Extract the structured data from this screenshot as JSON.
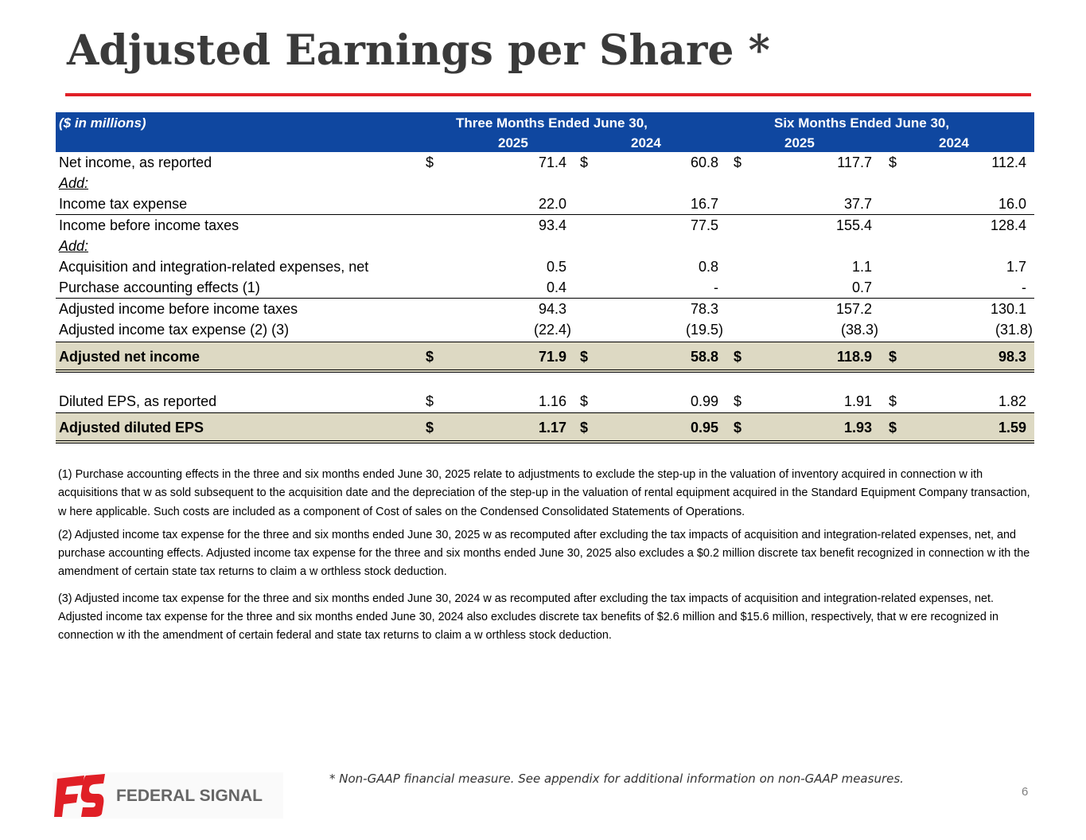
{
  "title": "Adjusted Earnings per Share *",
  "table": {
    "units": "($ in millions)",
    "group1": "Three Months Ended June 30,",
    "group2": "Six Months Ended June 30,",
    "years": [
      "2025",
      "2024",
      "2025",
      "2024"
    ],
    "rows": [
      {
        "label": "Net income, as reported",
        "cur": [
          "$",
          "$",
          "$",
          "$"
        ],
        "values": [
          "71.4",
          "60.8",
          "117.7",
          "112.4"
        ]
      },
      {
        "label": "Add:"
      },
      {
        "label": "Income tax expense",
        "values": [
          "22.0",
          "16.7",
          "37.7",
          "16.0"
        ]
      },
      {
        "label": "Income before income taxes",
        "values": [
          "93.4",
          "77.5",
          "155.4",
          "128.4"
        ]
      },
      {
        "label": "Add:"
      },
      {
        "label": "Acquisition and integration-related expenses, net",
        "values": [
          "0.5",
          "0.8",
          "1.1",
          "1.7"
        ]
      },
      {
        "label": "Purchase accounting effects (1)",
        "values": [
          "0.4",
          "-",
          "0.7",
          "-"
        ]
      },
      {
        "label": "Adjusted income before income taxes",
        "values": [
          "94.3",
          "78.3",
          "157.2",
          "130.1"
        ]
      },
      {
        "label": "Adjusted income tax expense (2) (3)",
        "values": [
          "(22.4)",
          "(19.5)",
          "(38.3)",
          "(31.8)"
        ]
      },
      {
        "label": "Adjusted net income",
        "cur": [
          "$",
          "$",
          "$",
          "$"
        ],
        "values": [
          "71.9",
          "58.8",
          "118.9",
          "98.3"
        ]
      },
      {
        "label": "Diluted EPS, as reported",
        "cur": [
          "$",
          "$",
          "$",
          "$"
        ],
        "values": [
          "1.16",
          "0.99",
          "1.91",
          "1.82"
        ]
      },
      {
        "label": "Adjusted diluted EPS",
        "cur": [
          "$",
          "$",
          "$",
          "$"
        ],
        "values": [
          "1.17",
          "0.95",
          "1.93",
          "1.59"
        ]
      }
    ]
  },
  "notes": [
    "(1) Purchase accounting effects in the three and six months ended June 30, 2025 relate to adjustments to exclude the step-up in the valuation of inventory acquired in connection w ith acquisitions that w as sold subsequent to the acquisition date and the depreciation of the step-up in the valuation of rental equipment acquired in the Standard Equipment Company transaction, w here applicable. Such costs are included as a component of Cost of sales on the Condensed Consolidated Statements of Operations.",
    "(2) Adjusted income tax expense for the three and six months ended June 30, 2025 w as recomputed after excluding the tax impacts of acquisition and integration-related expenses, net, and purchase accounting effects. Adjusted income tax expense for the three and six months ended June 30, 2025 also excludes a $0.2 million discrete tax benefit recognized in connection w ith the amendment of certain state tax returns to claim a w orthless stock deduction.",
    "(3) Adjusted income tax expense for the three and six months ended June 30, 2024 w as recomputed after excluding the tax impacts of acquisition and integration-related expenses, net. Adjusted income tax expense for the three and six months ended June 30, 2024 also excludes discrete tax benefits of $2.6 million and $15.6 million, respectively, that w ere recognized in connection w ith the amendment of certain federal and state tax returns to claim a w orthless stock deduction."
  ],
  "footer": {
    "logo_text": "FEDERAL SIGNAL",
    "footnote": "* Non-GAAP financial measure. See appendix for additional information on non-GAAP measures.",
    "page": "6"
  },
  "colors": {
    "accent_red": "#e01f26",
    "header_blue": "#0f47a0",
    "highlight": "#ddd9c3"
  }
}
